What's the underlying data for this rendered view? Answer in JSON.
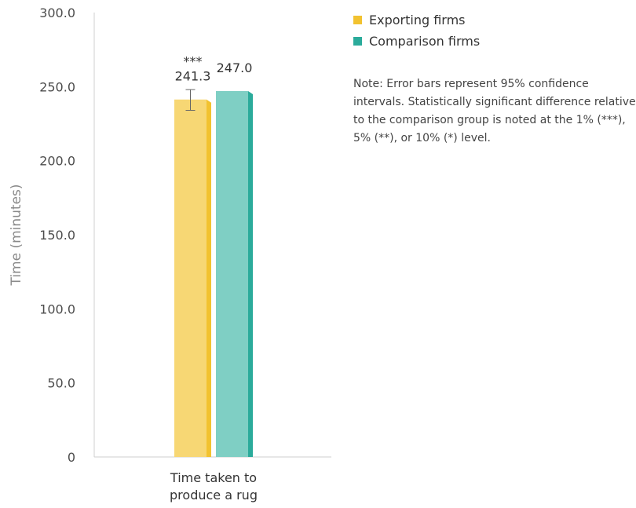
{
  "chart_data": {
    "type": "bar",
    "title": "",
    "xlabel": "",
    "ylabel": "Time (minutes)",
    "ylim": [
      0,
      300
    ],
    "yticks": [
      "0",
      "50.0",
      "100.0",
      "150.0",
      "200.0",
      "250.0",
      "300.0"
    ],
    "categories": [
      "Time taken to produce a rug"
    ],
    "category_lines": [
      "Time taken to",
      "produce a rug"
    ],
    "series": [
      {
        "name": "Exporting firms",
        "values": [
          241.3
        ],
        "labels": [
          "241.3"
        ],
        "significance": "***",
        "error_bar": [
          234,
          248
        ],
        "color": "#f7d774",
        "side_color": "#f2c230"
      },
      {
        "name": "Comparison firms",
        "values": [
          247.0
        ],
        "labels": [
          "247.0"
        ],
        "significance": "",
        "color": "#7fcfc4",
        "side_color": "#2bab9b"
      }
    ],
    "legend_position": "top-right",
    "grid": false
  },
  "legend": {
    "items": [
      {
        "label": "Exporting firms",
        "color": "#f2c230"
      },
      {
        "label": "Comparison firms",
        "color": "#2bab9b"
      }
    ]
  },
  "note": "Note: Error bars represent 95% confidence intervals. Statistically significant difference relative to the comparison group is noted at the 1% (***), 5% (**), or 10% (*) level."
}
